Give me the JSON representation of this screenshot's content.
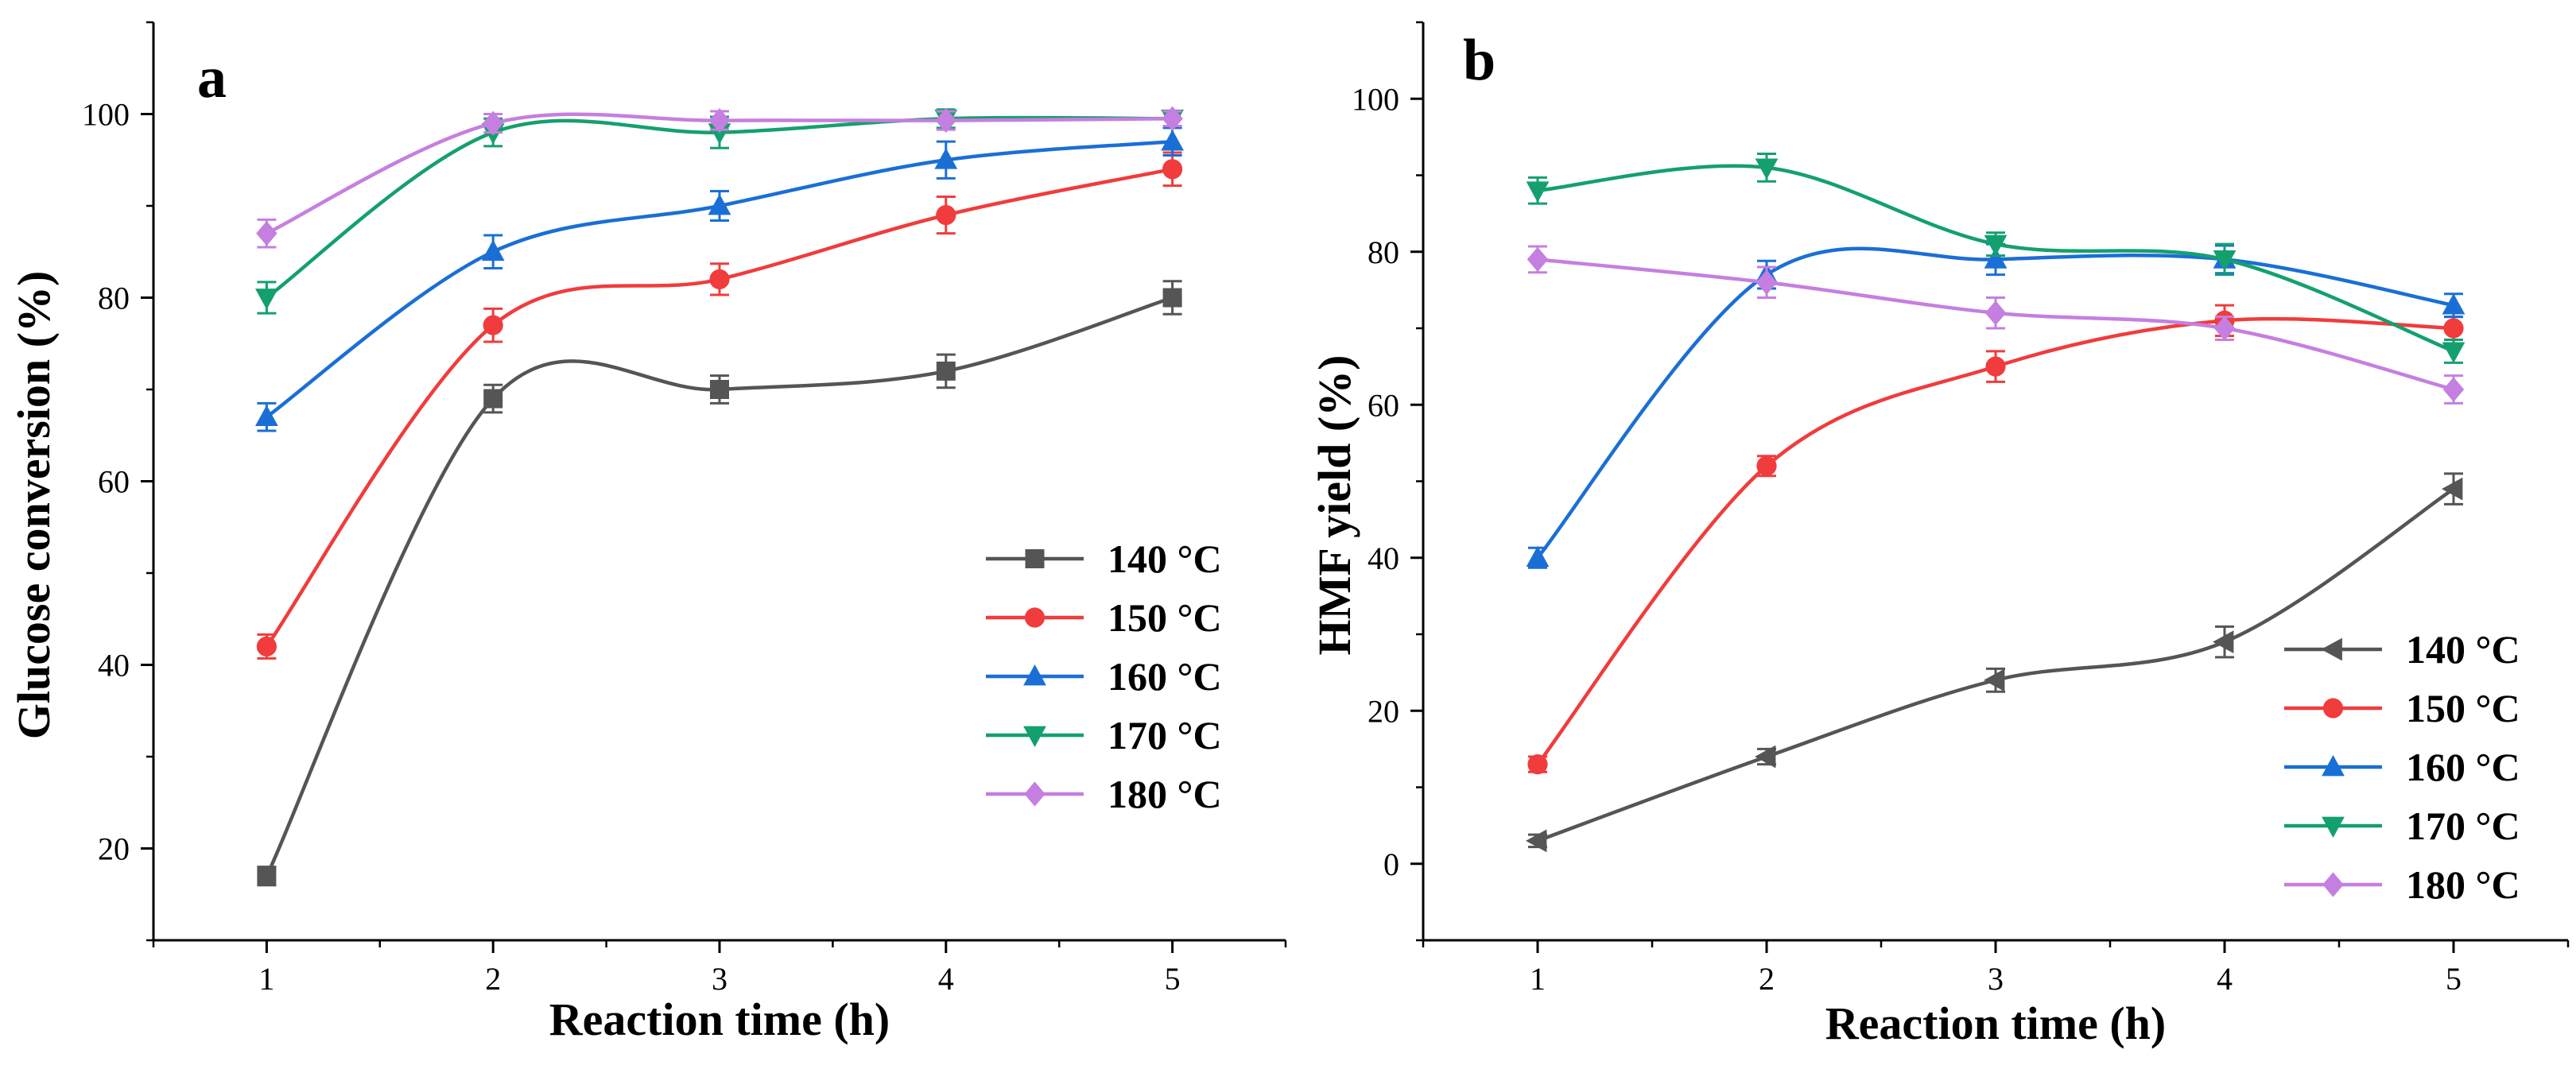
{
  "chart_data": [
    {
      "panel": "a",
      "type": "line",
      "title": "",
      "xlabel": "Reaction time (h)",
      "ylabel": "Glucose conversion (%)",
      "xlim": [
        0.5,
        5.5
      ],
      "ylim": [
        10,
        110
      ],
      "xticks": [
        1,
        2,
        3,
        4,
        5
      ],
      "yticks": [
        20,
        40,
        60,
        80,
        100
      ],
      "legend": "right-middle",
      "grid": false,
      "categories": [
        1,
        2,
        3,
        4,
        5
      ],
      "series": [
        {
          "name": "140 °C",
          "color": "#555555",
          "marker": "square",
          "values": [
            17,
            69,
            70,
            72,
            80
          ],
          "errors": [
            1,
            1.5,
            1.5,
            1.8,
            1.8
          ]
        },
        {
          "name": "150 °C",
          "color": "#f03c3c",
          "marker": "circle",
          "values": [
            42,
            77,
            82,
            89,
            94
          ],
          "errors": [
            1.3,
            1.8,
            1.7,
            2,
            1.8
          ]
        },
        {
          "name": "160 °C",
          "color": "#1a6fd6",
          "marker": "triangle-up",
          "values": [
            67,
            85,
            90,
            95,
            97
          ],
          "errors": [
            1.5,
            1.8,
            1.6,
            2,
            1.5
          ]
        },
        {
          "name": "170 °C",
          "color": "#14a06e",
          "marker": "triangle-down",
          "values": [
            80,
            98,
            98,
            99.5,
            99.5
          ],
          "errors": [
            1.7,
            1.5,
            1.7,
            1,
            0.8
          ]
        },
        {
          "name": "180 °C",
          "color": "#c57fe0",
          "marker": "diamond",
          "values": [
            87,
            99,
            99.3,
            99.3,
            99.5
          ],
          "errors": [
            1.5,
            1,
            1,
            1,
            0.8
          ]
        }
      ]
    },
    {
      "panel": "b",
      "type": "line",
      "title": "",
      "xlabel": "Reaction time (h)",
      "ylabel": "HMF yield (%)",
      "xlim": [
        0.5,
        5.5
      ],
      "ylim": [
        -10,
        110
      ],
      "xticks": [
        1,
        2,
        3,
        4,
        5
      ],
      "yticks": [
        0,
        20,
        40,
        60,
        80,
        100
      ],
      "legend": "bottom-right",
      "grid": false,
      "categories": [
        1,
        2,
        3,
        4,
        5
      ],
      "series": [
        {
          "name": "140 °C",
          "color": "#555555",
          "marker": "triangle-left",
          "values": [
            3,
            14,
            24,
            29,
            49
          ],
          "errors": [
            0.8,
            1,
            1.5,
            2,
            2
          ]
        },
        {
          "name": "150 °C",
          "color": "#f03c3c",
          "marker": "circle",
          "values": [
            13,
            52,
            65,
            71,
            70
          ],
          "errors": [
            1,
            1.3,
            2,
            2,
            1.5
          ]
        },
        {
          "name": "160 °C",
          "color": "#1a6fd6",
          "marker": "triangle-up",
          "values": [
            40,
            77,
            79,
            79,
            73
          ],
          "errors": [
            1.3,
            1.8,
            2,
            1.8,
            1.5
          ]
        },
        {
          "name": "170 °C",
          "color": "#14a06e",
          "marker": "triangle-down",
          "values": [
            88,
            91,
            81,
            79,
            67
          ],
          "errors": [
            1.7,
            1.8,
            1.5,
            2,
            1.5
          ]
        },
        {
          "name": "180 °C",
          "color": "#c57fe0",
          "marker": "diamond",
          "values": [
            79,
            76,
            72,
            70,
            62
          ],
          "errors": [
            1.7,
            2,
            2,
            1.5,
            1.8
          ]
        }
      ]
    }
  ]
}
